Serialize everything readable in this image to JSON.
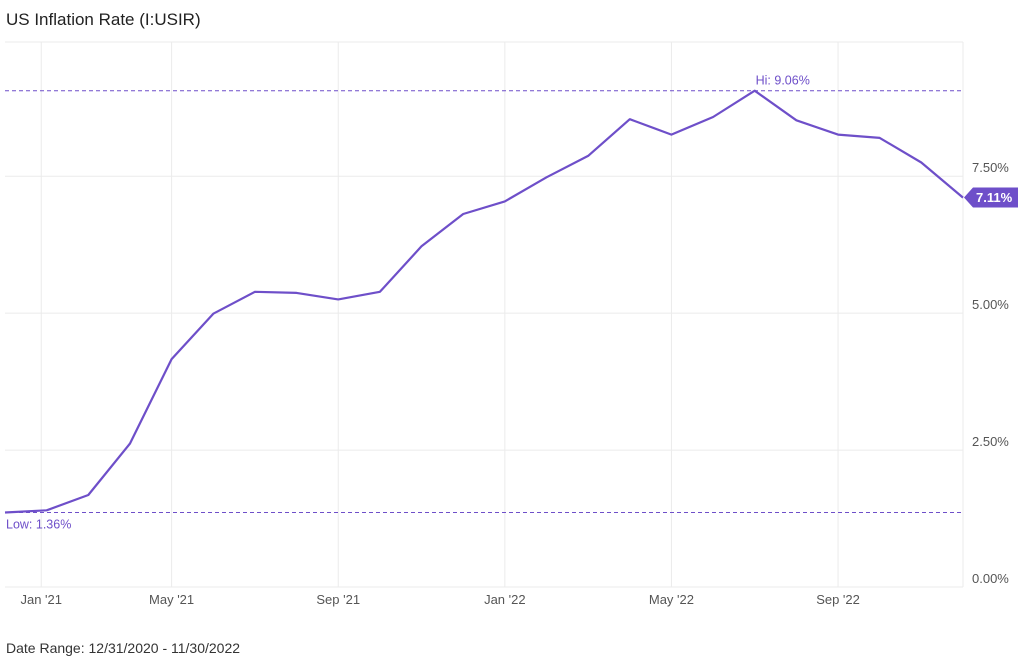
{
  "title": "US Inflation Rate (I:USIR)",
  "footer": "Date Range: 12/31/2020 - 11/30/2022",
  "colors": {
    "line": "#6e4fc9",
    "grid": "#ebebeb",
    "refline": "#6e4fc9",
    "badge": "#6e4fc9"
  },
  "chart_data": {
    "type": "line",
    "title": "US Inflation Rate (I:USIR)",
    "xlabel": "",
    "ylabel": "",
    "ylim": [
      0,
      9.95
    ],
    "grid": true,
    "yticks": [
      0,
      2.5,
      5,
      7.5
    ],
    "ytick_labels": [
      "0.00%",
      "2.50%",
      "5.00%",
      "7.50%"
    ],
    "x_ticks": [
      {
        "label": "Jan '21",
        "index": 0.87
      },
      {
        "label": "May '21",
        "index": 4
      },
      {
        "label": "Sep '21",
        "index": 8
      },
      {
        "label": "Jan '22",
        "index": 12
      },
      {
        "label": "May '22",
        "index": 16
      },
      {
        "label": "Sep '22",
        "index": 20
      }
    ],
    "x": [
      "2020-12-31",
      "2021-01-31",
      "2021-02-28",
      "2021-03-31",
      "2021-04-30",
      "2021-05-31",
      "2021-06-30",
      "2021-07-31",
      "2021-08-31",
      "2021-09-30",
      "2021-10-31",
      "2021-11-30",
      "2021-12-31",
      "2022-01-31",
      "2022-02-28",
      "2022-03-31",
      "2022-04-30",
      "2022-05-31",
      "2022-06-30",
      "2022-07-31",
      "2022-08-31",
      "2022-09-30",
      "2022-10-31",
      "2022-11-30"
    ],
    "series": [
      {
        "values": [
          1.36,
          1.4,
          1.68,
          2.62,
          4.16,
          4.99,
          5.39,
          5.37,
          5.25,
          5.39,
          6.22,
          6.81,
          7.04,
          7.48,
          7.87,
          8.54,
          8.26,
          8.58,
          9.06,
          8.52,
          8.26,
          8.2,
          7.75,
          7.11
        ]
      }
    ],
    "annotations": {
      "high_label": "Hi: 9.06%",
      "high_value": 9.06,
      "low_label": "Low: 1.36%",
      "low_value": 1.36,
      "last_label": "7.11%",
      "last_value": 7.11
    }
  }
}
